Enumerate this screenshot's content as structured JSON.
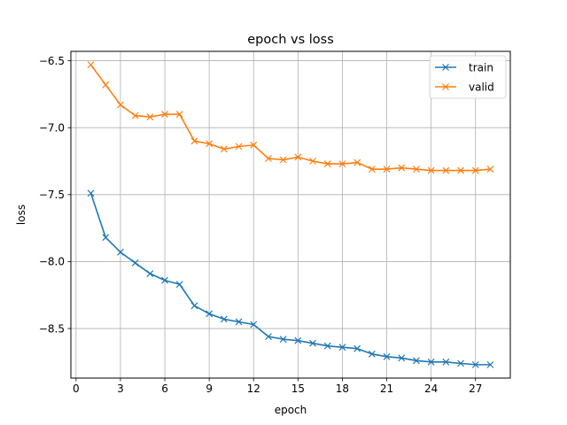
{
  "chart_data": {
    "type": "line",
    "title": "epoch vs loss",
    "xlabel": "epoch",
    "ylabel": "loss",
    "xlim": [
      -0.35,
      29.35
    ],
    "ylim": [
      -8.87,
      -6.43
    ],
    "xticks": [
      0,
      3,
      6,
      9,
      12,
      15,
      18,
      21,
      24,
      27
    ],
    "yticks": [
      -8.5,
      -8.0,
      -7.5,
      -7.0,
      -6.5
    ],
    "ytick_labels": [
      "−8.5",
      "−8.0",
      "−7.5",
      "−7.0",
      "−6.5"
    ],
    "grid": true,
    "legend_position": "top-right",
    "marker": "x",
    "x": [
      1,
      2,
      3,
      4,
      5,
      6,
      7,
      8,
      9,
      10,
      11,
      12,
      13,
      14,
      15,
      16,
      17,
      18,
      19,
      20,
      21,
      22,
      23,
      24,
      25,
      26,
      27,
      28
    ],
    "series": [
      {
        "name": "train",
        "color": "#1f77b4",
        "values": [
          -7.49,
          -7.82,
          -7.93,
          -8.01,
          -8.09,
          -8.14,
          -8.17,
          -8.33,
          -8.39,
          -8.43,
          -8.45,
          -8.47,
          -8.56,
          -8.58,
          -8.59,
          -8.61,
          -8.63,
          -8.64,
          -8.65,
          -8.69,
          -8.71,
          -8.72,
          -8.74,
          -8.75,
          -8.75,
          -8.76,
          -8.77,
          -8.77
        ]
      },
      {
        "name": "valid",
        "color": "#ff7f0e",
        "values": [
          -6.53,
          -6.68,
          -6.83,
          -6.91,
          -6.92,
          -6.9,
          -6.9,
          -7.1,
          -7.12,
          -7.16,
          -7.14,
          -7.13,
          -7.23,
          -7.24,
          -7.22,
          -7.25,
          -7.27,
          -7.27,
          -7.26,
          -7.31,
          -7.31,
          -7.3,
          -7.31,
          -7.32,
          -7.32,
          -7.32,
          -7.32,
          -7.31
        ]
      }
    ]
  }
}
